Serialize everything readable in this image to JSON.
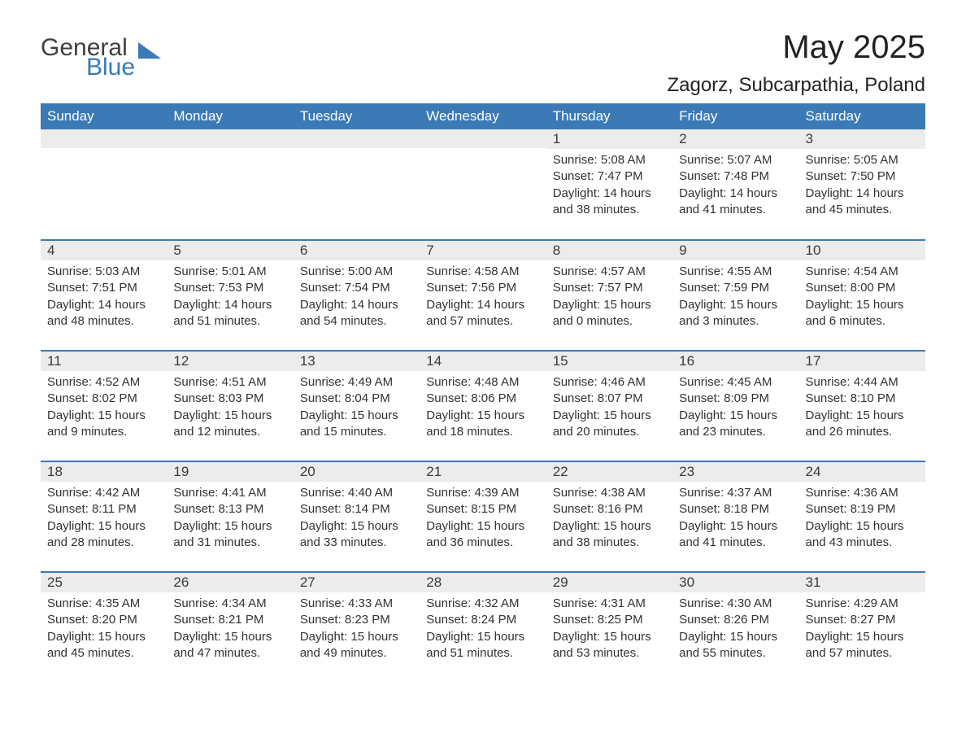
{
  "logo": {
    "word1": "General",
    "word2": "Blue"
  },
  "title": "May 2025",
  "location": "Zagorz, Subcarpathia, Poland",
  "colors": {
    "brand_blue": "#3b79b7",
    "header_text": "#ffffff",
    "daynum_bg": "#ececec",
    "body_text": "#323232",
    "page_bg": "#ffffff",
    "logo_gray": "#3f3f3f"
  },
  "day_headers": [
    "Sunday",
    "Monday",
    "Tuesday",
    "Wednesday",
    "Thursday",
    "Friday",
    "Saturday"
  ],
  "weeks": [
    [
      {
        "blank": true
      },
      {
        "blank": true
      },
      {
        "blank": true
      },
      {
        "blank": true
      },
      {
        "num": "1",
        "sunrise": "5:08 AM",
        "sunset": "7:47 PM",
        "daylight": "14 hours and 38 minutes."
      },
      {
        "num": "2",
        "sunrise": "5:07 AM",
        "sunset": "7:48 PM",
        "daylight": "14 hours and 41 minutes."
      },
      {
        "num": "3",
        "sunrise": "5:05 AM",
        "sunset": "7:50 PM",
        "daylight": "14 hours and 45 minutes."
      }
    ],
    [
      {
        "num": "4",
        "sunrise": "5:03 AM",
        "sunset": "7:51 PM",
        "daylight": "14 hours and 48 minutes."
      },
      {
        "num": "5",
        "sunrise": "5:01 AM",
        "sunset": "7:53 PM",
        "daylight": "14 hours and 51 minutes."
      },
      {
        "num": "6",
        "sunrise": "5:00 AM",
        "sunset": "7:54 PM",
        "daylight": "14 hours and 54 minutes."
      },
      {
        "num": "7",
        "sunrise": "4:58 AM",
        "sunset": "7:56 PM",
        "daylight": "14 hours and 57 minutes."
      },
      {
        "num": "8",
        "sunrise": "4:57 AM",
        "sunset": "7:57 PM",
        "daylight": "15 hours and 0 minutes."
      },
      {
        "num": "9",
        "sunrise": "4:55 AM",
        "sunset": "7:59 PM",
        "daylight": "15 hours and 3 minutes."
      },
      {
        "num": "10",
        "sunrise": "4:54 AM",
        "sunset": "8:00 PM",
        "daylight": "15 hours and 6 minutes."
      }
    ],
    [
      {
        "num": "11",
        "sunrise": "4:52 AM",
        "sunset": "8:02 PM",
        "daylight": "15 hours and 9 minutes."
      },
      {
        "num": "12",
        "sunrise": "4:51 AM",
        "sunset": "8:03 PM",
        "daylight": "15 hours and 12 minutes."
      },
      {
        "num": "13",
        "sunrise": "4:49 AM",
        "sunset": "8:04 PM",
        "daylight": "15 hours and 15 minutes."
      },
      {
        "num": "14",
        "sunrise": "4:48 AM",
        "sunset": "8:06 PM",
        "daylight": "15 hours and 18 minutes."
      },
      {
        "num": "15",
        "sunrise": "4:46 AM",
        "sunset": "8:07 PM",
        "daylight": "15 hours and 20 minutes."
      },
      {
        "num": "16",
        "sunrise": "4:45 AM",
        "sunset": "8:09 PM",
        "daylight": "15 hours and 23 minutes."
      },
      {
        "num": "17",
        "sunrise": "4:44 AM",
        "sunset": "8:10 PM",
        "daylight": "15 hours and 26 minutes."
      }
    ],
    [
      {
        "num": "18",
        "sunrise": "4:42 AM",
        "sunset": "8:11 PM",
        "daylight": "15 hours and 28 minutes."
      },
      {
        "num": "19",
        "sunrise": "4:41 AM",
        "sunset": "8:13 PM",
        "daylight": "15 hours and 31 minutes."
      },
      {
        "num": "20",
        "sunrise": "4:40 AM",
        "sunset": "8:14 PM",
        "daylight": "15 hours and 33 minutes."
      },
      {
        "num": "21",
        "sunrise": "4:39 AM",
        "sunset": "8:15 PM",
        "daylight": "15 hours and 36 minutes."
      },
      {
        "num": "22",
        "sunrise": "4:38 AM",
        "sunset": "8:16 PM",
        "daylight": "15 hours and 38 minutes."
      },
      {
        "num": "23",
        "sunrise": "4:37 AM",
        "sunset": "8:18 PM",
        "daylight": "15 hours and 41 minutes."
      },
      {
        "num": "24",
        "sunrise": "4:36 AM",
        "sunset": "8:19 PM",
        "daylight": "15 hours and 43 minutes."
      }
    ],
    [
      {
        "num": "25",
        "sunrise": "4:35 AM",
        "sunset": "8:20 PM",
        "daylight": "15 hours and 45 minutes."
      },
      {
        "num": "26",
        "sunrise": "4:34 AM",
        "sunset": "8:21 PM",
        "daylight": "15 hours and 47 minutes."
      },
      {
        "num": "27",
        "sunrise": "4:33 AM",
        "sunset": "8:23 PM",
        "daylight": "15 hours and 49 minutes."
      },
      {
        "num": "28",
        "sunrise": "4:32 AM",
        "sunset": "8:24 PM",
        "daylight": "15 hours and 51 minutes."
      },
      {
        "num": "29",
        "sunrise": "4:31 AM",
        "sunset": "8:25 PM",
        "daylight": "15 hours and 53 minutes."
      },
      {
        "num": "30",
        "sunrise": "4:30 AM",
        "sunset": "8:26 PM",
        "daylight": "15 hours and 55 minutes."
      },
      {
        "num": "31",
        "sunrise": "4:29 AM",
        "sunset": "8:27 PM",
        "daylight": "15 hours and 57 minutes."
      }
    ]
  ],
  "labels": {
    "sunrise": "Sunrise:",
    "sunset": "Sunset:",
    "daylight": "Daylight:"
  }
}
